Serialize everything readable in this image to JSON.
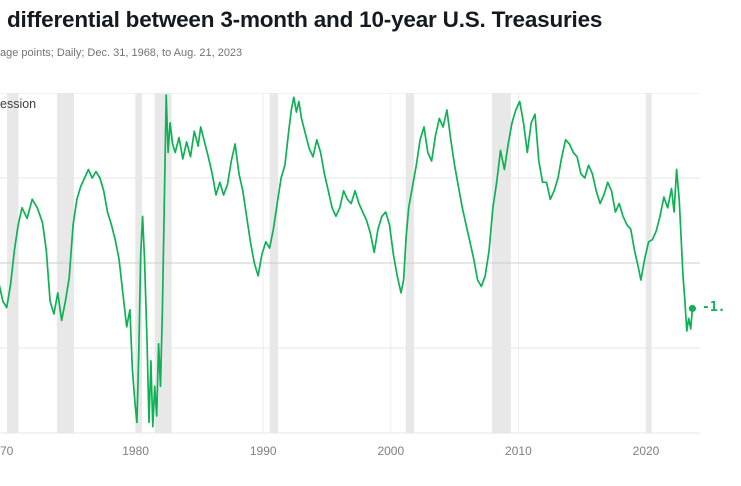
{
  "header": {
    "title": "differential between 3-month and 10-year U.S. Treasuries",
    "subtitle": "age points; Daily; Dec. 31, 1968, to Aug. 21, 2023"
  },
  "chart": {
    "legend_label": "ession",
    "end_label": "-1."
  },
  "chart_data": {
    "type": "line",
    "title": "differential between 3-month and 10-year U.S. Treasuries",
    "subtitle": "age points; Daily; Dec. 31, 1968, to Aug. 21, 2023",
    "xlabel": "",
    "ylabel": "",
    "xlim": [
      1968.6,
      2023.8
    ],
    "ylim": [
      -4,
      4
    ],
    "grid": true,
    "legend_label": "ession",
    "y_gridlines": [
      4,
      2,
      0,
      -2,
      -4
    ],
    "x_ticks": [
      {
        "year": 1970,
        "label": "70",
        "align": "left"
      },
      {
        "year": 1980,
        "label": "1980"
      },
      {
        "year": 1990,
        "label": "1990"
      },
      {
        "year": 2000,
        "label": "2000"
      },
      {
        "year": 2010,
        "label": "2010"
      },
      {
        "year": 2020,
        "label": "2020"
      }
    ],
    "recessions": [
      [
        1969.92,
        1970.83
      ],
      [
        1973.83,
        1975.17
      ],
      [
        1980.0,
        1980.5
      ],
      [
        1981.5,
        1982.83
      ],
      [
        1990.5,
        1991.17
      ],
      [
        2001.17,
        2001.83
      ],
      [
        2007.92,
        2009.42
      ],
      [
        2020.05,
        2020.45
      ]
    ],
    "series": [
      [
        1968.62,
        -0.2
      ],
      [
        1969.0,
        0.0
      ],
      [
        1969.3,
        -0.5
      ],
      [
        1969.6,
        -0.9
      ],
      [
        1969.9,
        -1.05
      ],
      [
        1970.2,
        -0.5
      ],
      [
        1970.5,
        0.3
      ],
      [
        1970.8,
        0.9
      ],
      [
        1971.1,
        1.3
      ],
      [
        1971.5,
        1.05
      ],
      [
        1971.9,
        1.5
      ],
      [
        1972.3,
        1.3
      ],
      [
        1972.7,
        0.95
      ],
      [
        1973.0,
        0.3
      ],
      [
        1973.3,
        -0.9
      ],
      [
        1973.6,
        -1.2
      ],
      [
        1973.9,
        -0.7
      ],
      [
        1974.2,
        -1.35
      ],
      [
        1974.5,
        -0.9
      ],
      [
        1974.8,
        -0.35
      ],
      [
        1975.1,
        0.9
      ],
      [
        1975.4,
        1.5
      ],
      [
        1975.7,
        1.8
      ],
      [
        1976.0,
        2.0
      ],
      [
        1976.3,
        2.2
      ],
      [
        1976.6,
        2.0
      ],
      [
        1976.9,
        2.15
      ],
      [
        1977.2,
        2.0
      ],
      [
        1977.5,
        1.7
      ],
      [
        1977.8,
        1.2
      ],
      [
        1978.1,
        0.9
      ],
      [
        1978.4,
        0.55
      ],
      [
        1978.7,
        0.1
      ],
      [
        1979.0,
        -0.7
      ],
      [
        1979.3,
        -1.5
      ],
      [
        1979.55,
        -1.1
      ],
      [
        1979.75,
        -2.5
      ],
      [
        1979.95,
        -3.3
      ],
      [
        1980.1,
        -3.75
      ],
      [
        1980.25,
        -2.1
      ],
      [
        1980.4,
        0.2
      ],
      [
        1980.55,
        1.1
      ],
      [
        1980.7,
        0.1
      ],
      [
        1980.9,
        -1.9
      ],
      [
        1981.05,
        -3.75
      ],
      [
        1981.2,
        -2.3
      ],
      [
        1981.35,
        -3.85
      ],
      [
        1981.5,
        -2.9
      ],
      [
        1981.65,
        -3.6
      ],
      [
        1981.8,
        -1.9
      ],
      [
        1981.95,
        -2.9
      ],
      [
        1982.1,
        -1.1
      ],
      [
        1982.25,
        1.4
      ],
      [
        1982.4,
        3.95
      ],
      [
        1982.55,
        2.6
      ],
      [
        1982.7,
        3.3
      ],
      [
        1982.9,
        2.8
      ],
      [
        1983.1,
        2.6
      ],
      [
        1983.4,
        2.95
      ],
      [
        1983.7,
        2.45
      ],
      [
        1984.0,
        2.85
      ],
      [
        1984.3,
        2.5
      ],
      [
        1984.6,
        3.1
      ],
      [
        1984.9,
        2.75
      ],
      [
        1985.1,
        3.2
      ],
      [
        1985.4,
        2.85
      ],
      [
        1985.7,
        2.5
      ],
      [
        1986.0,
        2.1
      ],
      [
        1986.3,
        1.6
      ],
      [
        1986.6,
        1.9
      ],
      [
        1986.9,
        1.6
      ],
      [
        1987.2,
        1.85
      ],
      [
        1987.5,
        2.4
      ],
      [
        1987.8,
        2.8
      ],
      [
        1988.1,
        2.1
      ],
      [
        1988.4,
        1.7
      ],
      [
        1988.7,
        1.1
      ],
      [
        1989.0,
        0.5
      ],
      [
        1989.3,
        0.0
      ],
      [
        1989.6,
        -0.3
      ],
      [
        1989.9,
        0.2
      ],
      [
        1990.2,
        0.5
      ],
      [
        1990.5,
        0.35
      ],
      [
        1990.8,
        0.8
      ],
      [
        1991.1,
        1.4
      ],
      [
        1991.4,
        2.0
      ],
      [
        1991.7,
        2.3
      ],
      [
        1992.0,
        3.1
      ],
      [
        1992.2,
        3.6
      ],
      [
        1992.4,
        3.9
      ],
      [
        1992.6,
        3.55
      ],
      [
        1992.8,
        3.8
      ],
      [
        1993.0,
        3.4
      ],
      [
        1993.3,
        3.05
      ],
      [
        1993.6,
        2.7
      ],
      [
        1993.9,
        2.5
      ],
      [
        1994.2,
        2.9
      ],
      [
        1994.5,
        2.6
      ],
      [
        1994.8,
        2.1
      ],
      [
        1995.1,
        1.7
      ],
      [
        1995.4,
        1.3
      ],
      [
        1995.7,
        1.1
      ],
      [
        1996.0,
        1.3
      ],
      [
        1996.3,
        1.7
      ],
      [
        1996.6,
        1.5
      ],
      [
        1996.9,
        1.4
      ],
      [
        1997.2,
        1.7
      ],
      [
        1997.5,
        1.4
      ],
      [
        1997.8,
        1.2
      ],
      [
        1998.1,
        1.0
      ],
      [
        1998.4,
        0.7
      ],
      [
        1998.7,
        0.25
      ],
      [
        1999.0,
        0.8
      ],
      [
        1999.3,
        1.1
      ],
      [
        1999.6,
        1.2
      ],
      [
        1999.9,
        0.9
      ],
      [
        2000.2,
        0.2
      ],
      [
        2000.5,
        -0.3
      ],
      [
        2000.8,
        -0.7
      ],
      [
        2001.0,
        -0.4
      ],
      [
        2001.2,
        0.6
      ],
      [
        2001.4,
        1.3
      ],
      [
        2001.7,
        1.8
      ],
      [
        2002.0,
        2.3
      ],
      [
        2002.3,
        2.9
      ],
      [
        2002.6,
        3.2
      ],
      [
        2002.9,
        2.6
      ],
      [
        2003.2,
        2.4
      ],
      [
        2003.5,
        3.0
      ],
      [
        2003.8,
        3.4
      ],
      [
        2004.1,
        3.2
      ],
      [
        2004.4,
        3.6
      ],
      [
        2004.7,
        2.9
      ],
      [
        2005.0,
        2.3
      ],
      [
        2005.3,
        1.8
      ],
      [
        2005.6,
        1.3
      ],
      [
        2005.9,
        0.9
      ],
      [
        2006.2,
        0.5
      ],
      [
        2006.5,
        0.1
      ],
      [
        2006.8,
        -0.4
      ],
      [
        2007.1,
        -0.55
      ],
      [
        2007.4,
        -0.3
      ],
      [
        2007.7,
        0.3
      ],
      [
        2008.0,
        1.3
      ],
      [
        2008.3,
        1.9
      ],
      [
        2008.6,
        2.65
      ],
      [
        2008.9,
        2.2
      ],
      [
        2009.2,
        2.8
      ],
      [
        2009.5,
        3.3
      ],
      [
        2009.8,
        3.6
      ],
      [
        2010.1,
        3.8
      ],
      [
        2010.4,
        3.3
      ],
      [
        2010.7,
        2.6
      ],
      [
        2011.0,
        3.3
      ],
      [
        2011.3,
        3.5
      ],
      [
        2011.6,
        2.4
      ],
      [
        2011.9,
        1.9
      ],
      [
        2012.2,
        1.9
      ],
      [
        2012.5,
        1.5
      ],
      [
        2012.8,
        1.7
      ],
      [
        2013.1,
        2.0
      ],
      [
        2013.4,
        2.5
      ],
      [
        2013.7,
        2.9
      ],
      [
        2014.0,
        2.8
      ],
      [
        2014.3,
        2.6
      ],
      [
        2014.6,
        2.5
      ],
      [
        2014.9,
        2.1
      ],
      [
        2015.2,
        2.0
      ],
      [
        2015.5,
        2.3
      ],
      [
        2015.8,
        2.1
      ],
      [
        2016.1,
        1.7
      ],
      [
        2016.4,
        1.4
      ],
      [
        2016.7,
        1.6
      ],
      [
        2017.0,
        1.9
      ],
      [
        2017.3,
        1.7
      ],
      [
        2017.6,
        1.2
      ],
      [
        2017.9,
        1.4
      ],
      [
        2018.2,
        1.1
      ],
      [
        2018.5,
        0.9
      ],
      [
        2018.8,
        0.8
      ],
      [
        2019.1,
        0.3
      ],
      [
        2019.4,
        -0.1
      ],
      [
        2019.6,
        -0.4
      ],
      [
        2019.9,
        0.1
      ],
      [
        2020.2,
        0.5
      ],
      [
        2020.5,
        0.55
      ],
      [
        2020.8,
        0.75
      ],
      [
        2021.1,
        1.1
      ],
      [
        2021.4,
        1.55
      ],
      [
        2021.7,
        1.3
      ],
      [
        2022.0,
        1.75
      ],
      [
        2022.2,
        1.2
      ],
      [
        2022.4,
        2.2
      ],
      [
        2022.6,
        1.5
      ],
      [
        2022.75,
        0.6
      ],
      [
        2022.9,
        -0.3
      ],
      [
        2023.05,
        -0.9
      ],
      [
        2023.2,
        -1.6
      ],
      [
        2023.35,
        -1.3
      ],
      [
        2023.5,
        -1.55
      ],
      [
        2023.64,
        -1.07
      ]
    ],
    "end_point": [
      2023.64,
      -1.07
    ],
    "end_label": "-1.",
    "colors": {
      "line": "#0eb155",
      "recession_band": "#e8e8e8",
      "grid": "#e7e7e7",
      "grid_vertical": "#ededed",
      "zero_line": "#cccccc",
      "title": "#141a20",
      "subtitle": "#6f737a",
      "tick": "#7c7f85"
    }
  }
}
